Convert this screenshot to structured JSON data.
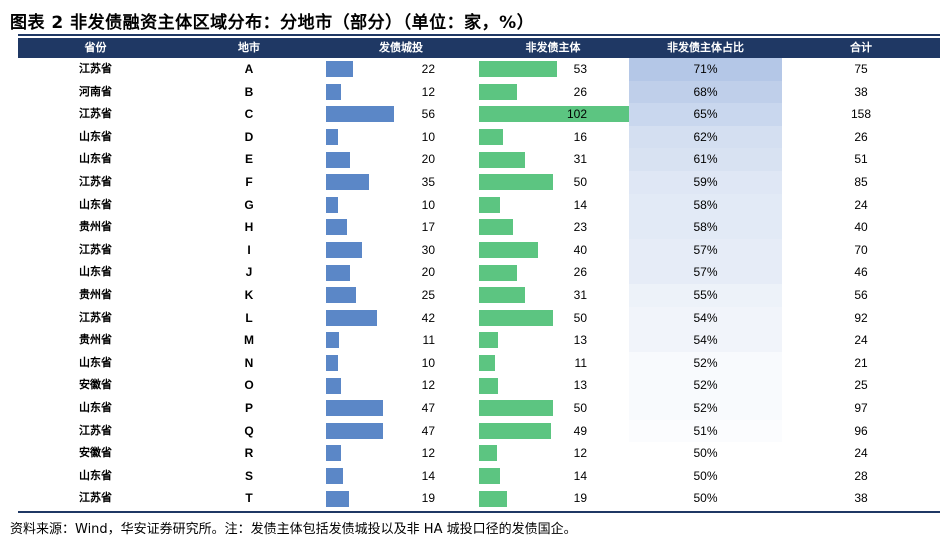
{
  "title": "图表 2 非发债融资主体区域分布：分地市（部分）（单位：家，%）",
  "headers": {
    "province": "省份",
    "city": "地市",
    "bond_issuers": "发债城投",
    "non_bond_entities": "非发债主体",
    "non_bond_ratio": "非发债主体占比",
    "total": "合计"
  },
  "colors": {
    "header_bg": "#1f3864",
    "bond_bar": "#5b87c7",
    "non_bond_bar": "#5cc581",
    "ratio_high": "#b4c7e7",
    "ratio_low": "#ffffff"
  },
  "rows": [
    {
      "province": "江苏省",
      "city": "A",
      "bond": "22",
      "non_bond": "53",
      "ratio": "71%",
      "total": "75"
    },
    {
      "province": "河南省",
      "city": "B",
      "bond": "12",
      "non_bond": "26",
      "ratio": "68%",
      "total": "38"
    },
    {
      "province": "江苏省",
      "city": "C",
      "bond": "56",
      "non_bond": "102",
      "ratio": "65%",
      "total": "158"
    },
    {
      "province": "山东省",
      "city": "D",
      "bond": "10",
      "non_bond": "16",
      "ratio": "62%",
      "total": "26"
    },
    {
      "province": "山东省",
      "city": "E",
      "bond": "20",
      "non_bond": "31",
      "ratio": "61%",
      "total": "51"
    },
    {
      "province": "江苏省",
      "city": "F",
      "bond": "35",
      "non_bond": "50",
      "ratio": "59%",
      "total": "85"
    },
    {
      "province": "山东省",
      "city": "G",
      "bond": "10",
      "non_bond": "14",
      "ratio": "58%",
      "total": "24"
    },
    {
      "province": "贵州省",
      "city": "H",
      "bond": "17",
      "non_bond": "23",
      "ratio": "58%",
      "total": "40"
    },
    {
      "province": "江苏省",
      "city": "I",
      "bond": "30",
      "non_bond": "40",
      "ratio": "57%",
      "total": "70"
    },
    {
      "province": "山东省",
      "city": "J",
      "bond": "20",
      "non_bond": "26",
      "ratio": "57%",
      "total": "46"
    },
    {
      "province": "贵州省",
      "city": "K",
      "bond": "25",
      "non_bond": "31",
      "ratio": "55%",
      "total": "56"
    },
    {
      "province": "江苏省",
      "city": "L",
      "bond": "42",
      "non_bond": "50",
      "ratio": "54%",
      "total": "92"
    },
    {
      "province": "贵州省",
      "city": "M",
      "bond": "11",
      "non_bond": "13",
      "ratio": "54%",
      "total": "24"
    },
    {
      "province": "山东省",
      "city": "N",
      "bond": "10",
      "non_bond": "11",
      "ratio": "52%",
      "total": "21"
    },
    {
      "province": "安徽省",
      "city": "O",
      "bond": "12",
      "non_bond": "13",
      "ratio": "52%",
      "total": "25"
    },
    {
      "province": "山东省",
      "city": "P",
      "bond": "47",
      "non_bond": "50",
      "ratio": "52%",
      "total": "97"
    },
    {
      "province": "江苏省",
      "city": "Q",
      "bond": "47",
      "non_bond": "49",
      "ratio": "51%",
      "total": "96"
    },
    {
      "province": "安徽省",
      "city": "R",
      "bond": "12",
      "non_bond": "12",
      "ratio": "50%",
      "total": "24"
    },
    {
      "province": "山东省",
      "city": "S",
      "bond": "14",
      "non_bond": "14",
      "ratio": "50%",
      "total": "28"
    },
    {
      "province": "江苏省",
      "city": "T",
      "bond": "19",
      "non_bond": "19",
      "ratio": "50%",
      "total": "38"
    }
  ],
  "source": "资料来源：Wind，华安证券研究所。注：发债主体包括发债城投以及非 HA 城投口径的发债国企。"
}
